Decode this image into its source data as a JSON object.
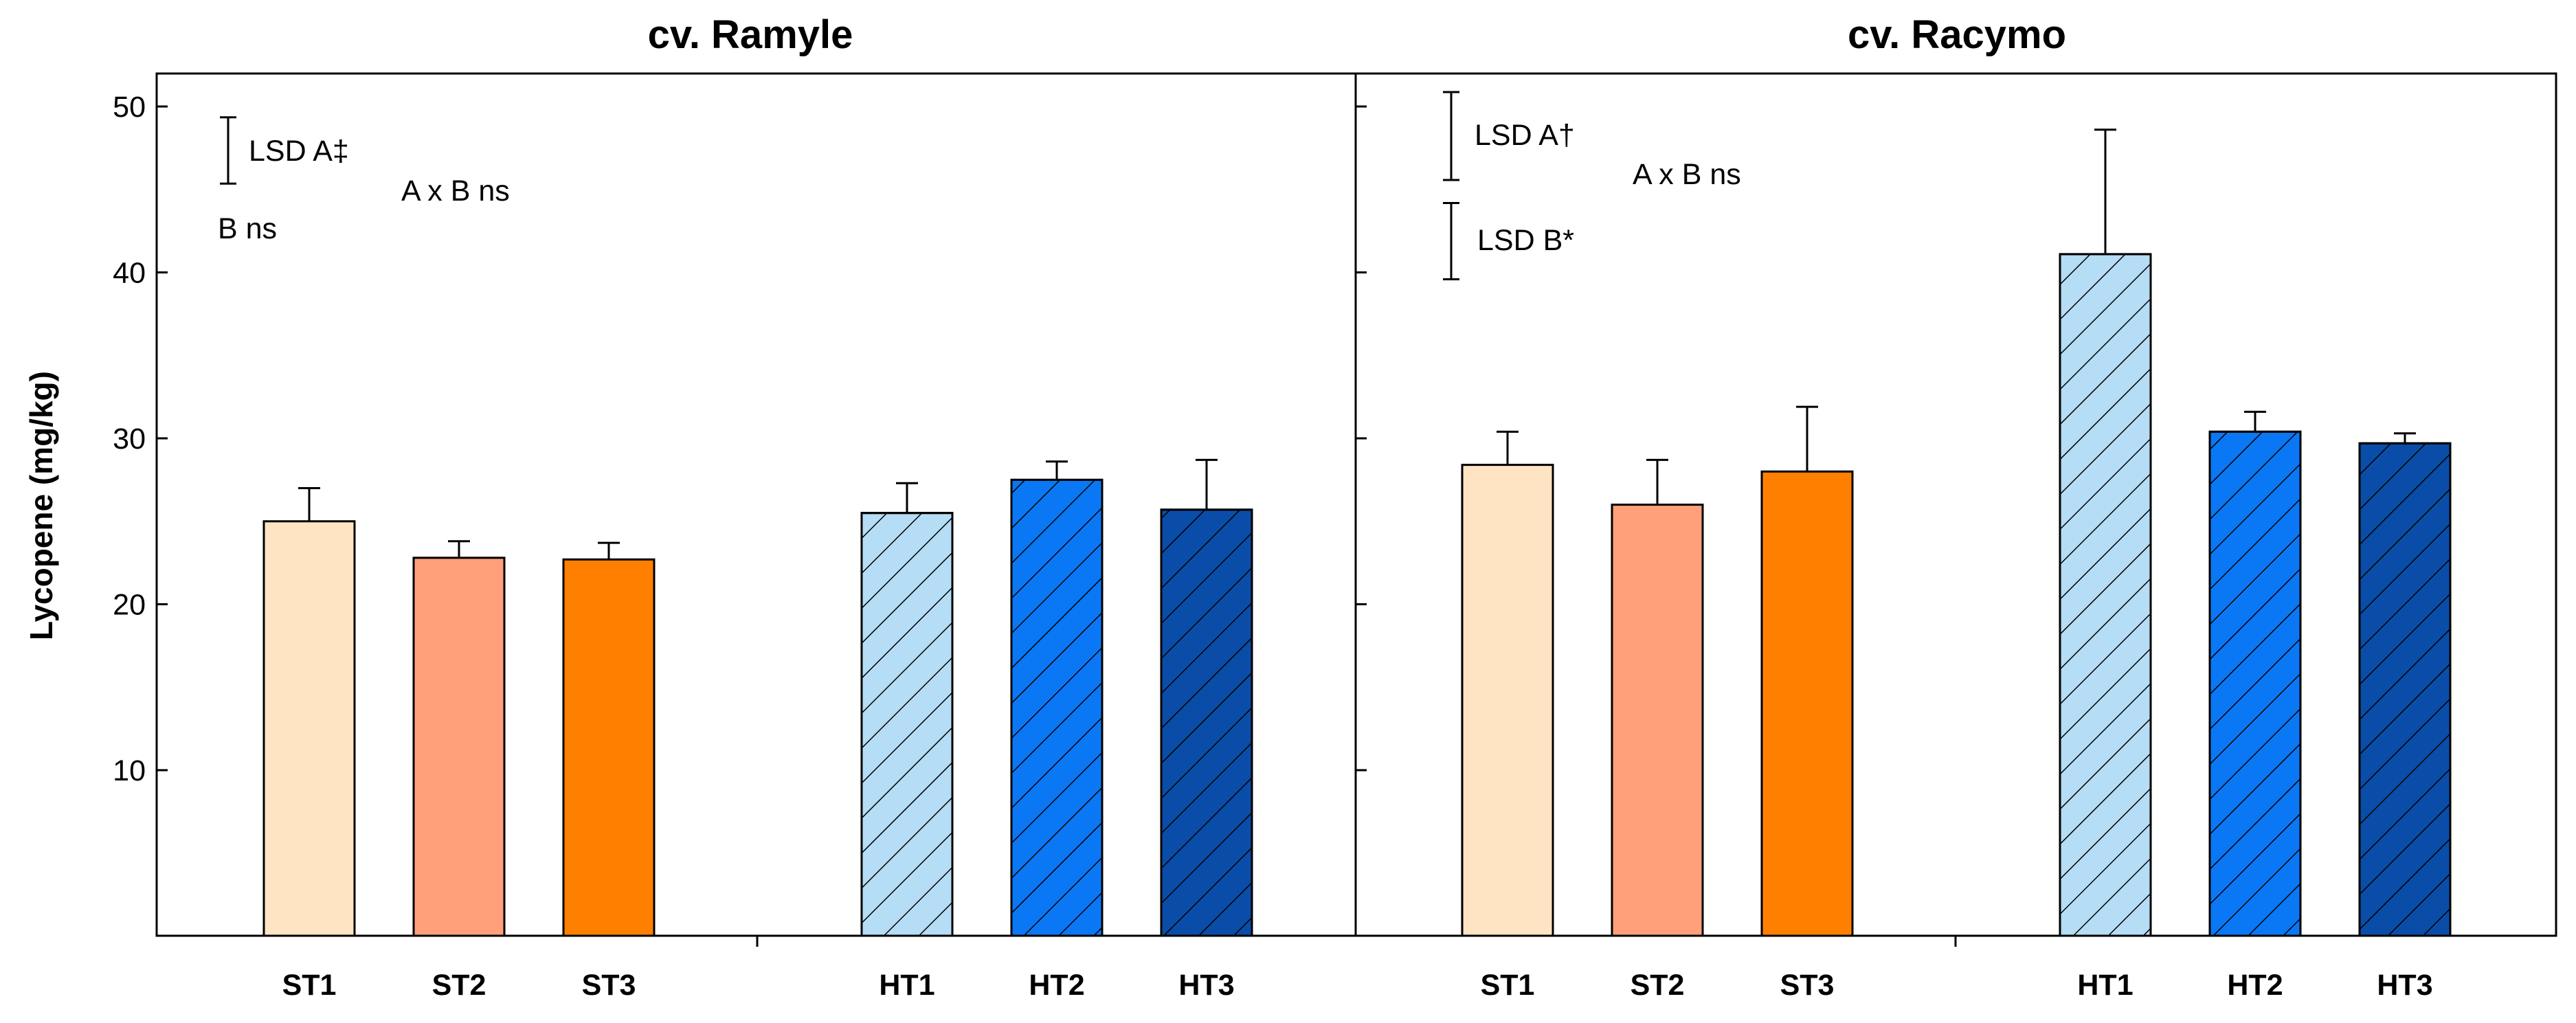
{
  "chart_data": {
    "type": "bar",
    "ylabel": "Lycopene (mg/kg)",
    "ylim": [
      0,
      52
    ],
    "yticks": [
      10,
      20,
      30,
      40,
      50
    ],
    "panels": [
      {
        "title": "cv. Ramyle",
        "categories": [
          "ST1",
          "ST2",
          "ST3",
          "HT1",
          "HT2",
          "HT3"
        ],
        "values": [
          25.0,
          22.8,
          22.7,
          25.5,
          27.5,
          25.7
        ],
        "errors": [
          2.0,
          1.0,
          1.0,
          1.8,
          1.1,
          3.0
        ],
        "annotations": {
          "lsd_a": "LSD  A‡",
          "b": "B ns",
          "axb": "A x B ns"
        },
        "lsd_a_height": 4.0
      },
      {
        "title": "cv. Racymo",
        "categories": [
          "ST1",
          "ST2",
          "ST3",
          "HT1",
          "HT2",
          "HT3"
        ],
        "values": [
          28.4,
          26.0,
          28.0,
          41.1,
          30.4,
          29.7
        ],
        "errors": [
          2.0,
          2.7,
          3.9,
          7.5,
          1.2,
          0.6
        ],
        "annotations": {
          "lsd_a": "LSD  A†",
          "lsd_b": "LSD  B*",
          "axb": "A x B ns"
        },
        "lsd_a_height": 5.3,
        "lsd_b_height": 4.6
      }
    ],
    "colors": [
      "#FFE4C4",
      "#FFA07A",
      "#FF8000",
      "#B5DDF5",
      "#0A78F5",
      "#0A4DA8"
    ],
    "hatched": [
      false,
      false,
      false,
      true,
      true,
      true
    ]
  }
}
